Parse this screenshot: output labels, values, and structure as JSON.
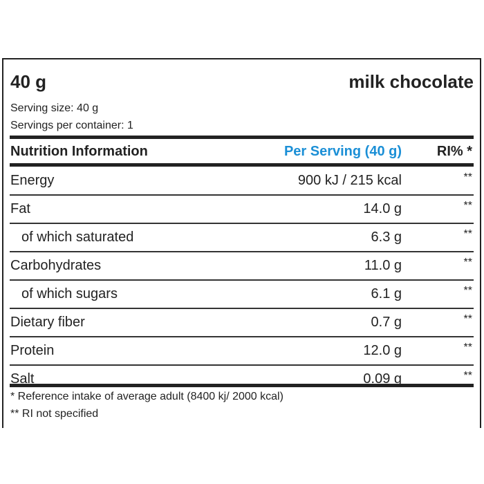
{
  "header": {
    "size": "40 g",
    "product": "milk chocolate",
    "serving_size": "Serving size: 40 g",
    "servings_per_container": "Servings per container: 1"
  },
  "table": {
    "columns": {
      "nutrient": "Nutrition Information",
      "per_serving": "Per Serving (40 g)",
      "ri": "RI% *"
    },
    "rows": [
      {
        "name": "Energy",
        "value": "900 kJ / 215 kcal",
        "ri": "**",
        "sub": false
      },
      {
        "name": "Fat",
        "value": "14.0 g",
        "ri": "**",
        "sub": false
      },
      {
        "name": "of which saturated",
        "value": "6.3 g",
        "ri": "**",
        "sub": true
      },
      {
        "name": "Carbohydrates",
        "value": "11.0 g",
        "ri": "**",
        "sub": false
      },
      {
        "name": "of which sugars",
        "value": "6.1 g",
        "ri": "**",
        "sub": true
      },
      {
        "name": "Dietary fiber",
        "value": "0.7 g",
        "ri": "**",
        "sub": false
      },
      {
        "name": "Protein",
        "value": "12.0 g",
        "ri": "**",
        "sub": false
      },
      {
        "name": "Salt",
        "value": "0.09 g",
        "ri": "**",
        "sub": false
      }
    ]
  },
  "footnotes": {
    "reference": "* Reference intake of average adult (8400 kj/ 2000 kcal)",
    "ri_not_specified": "** RI not specified"
  },
  "colors": {
    "accent": "#1b8fd6",
    "text": "#222222"
  }
}
